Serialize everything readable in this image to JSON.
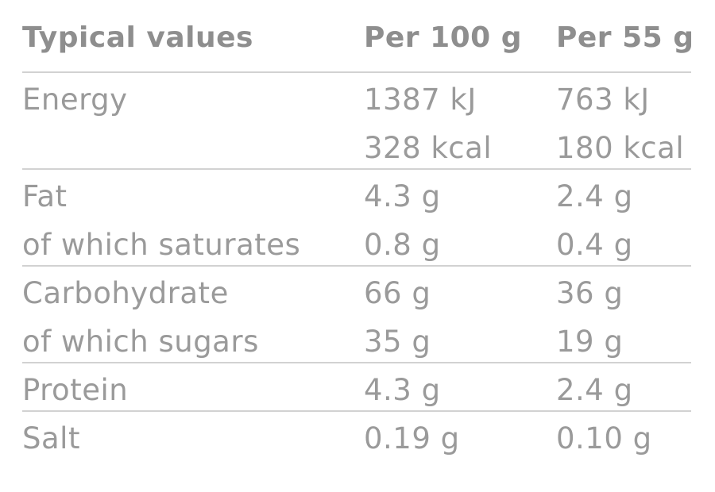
{
  "table": {
    "header": [
      "Typical values",
      "Per 100 g",
      "Per 55 g"
    ],
    "groups": [
      [
        [
          "Energy",
          "1387 kJ",
          "763 kJ"
        ],
        [
          null,
          "328 kcal",
          "180 kcal"
        ]
      ],
      [
        [
          "Fat",
          "4.3 g",
          "2.4 g"
        ],
        [
          "of which saturates",
          "0.8 g",
          "0.4 g"
        ]
      ],
      [
        [
          "Carbohydrate",
          "66 g",
          "36 g"
        ],
        [
          "of which sugars",
          "35 g",
          "19 g"
        ]
      ],
      [
        [
          "Protein",
          "4.3 g",
          "2.4 g"
        ]
      ],
      [
        [
          "Salt",
          "0.19 g",
          "0.10 g"
        ]
      ]
    ]
  }
}
